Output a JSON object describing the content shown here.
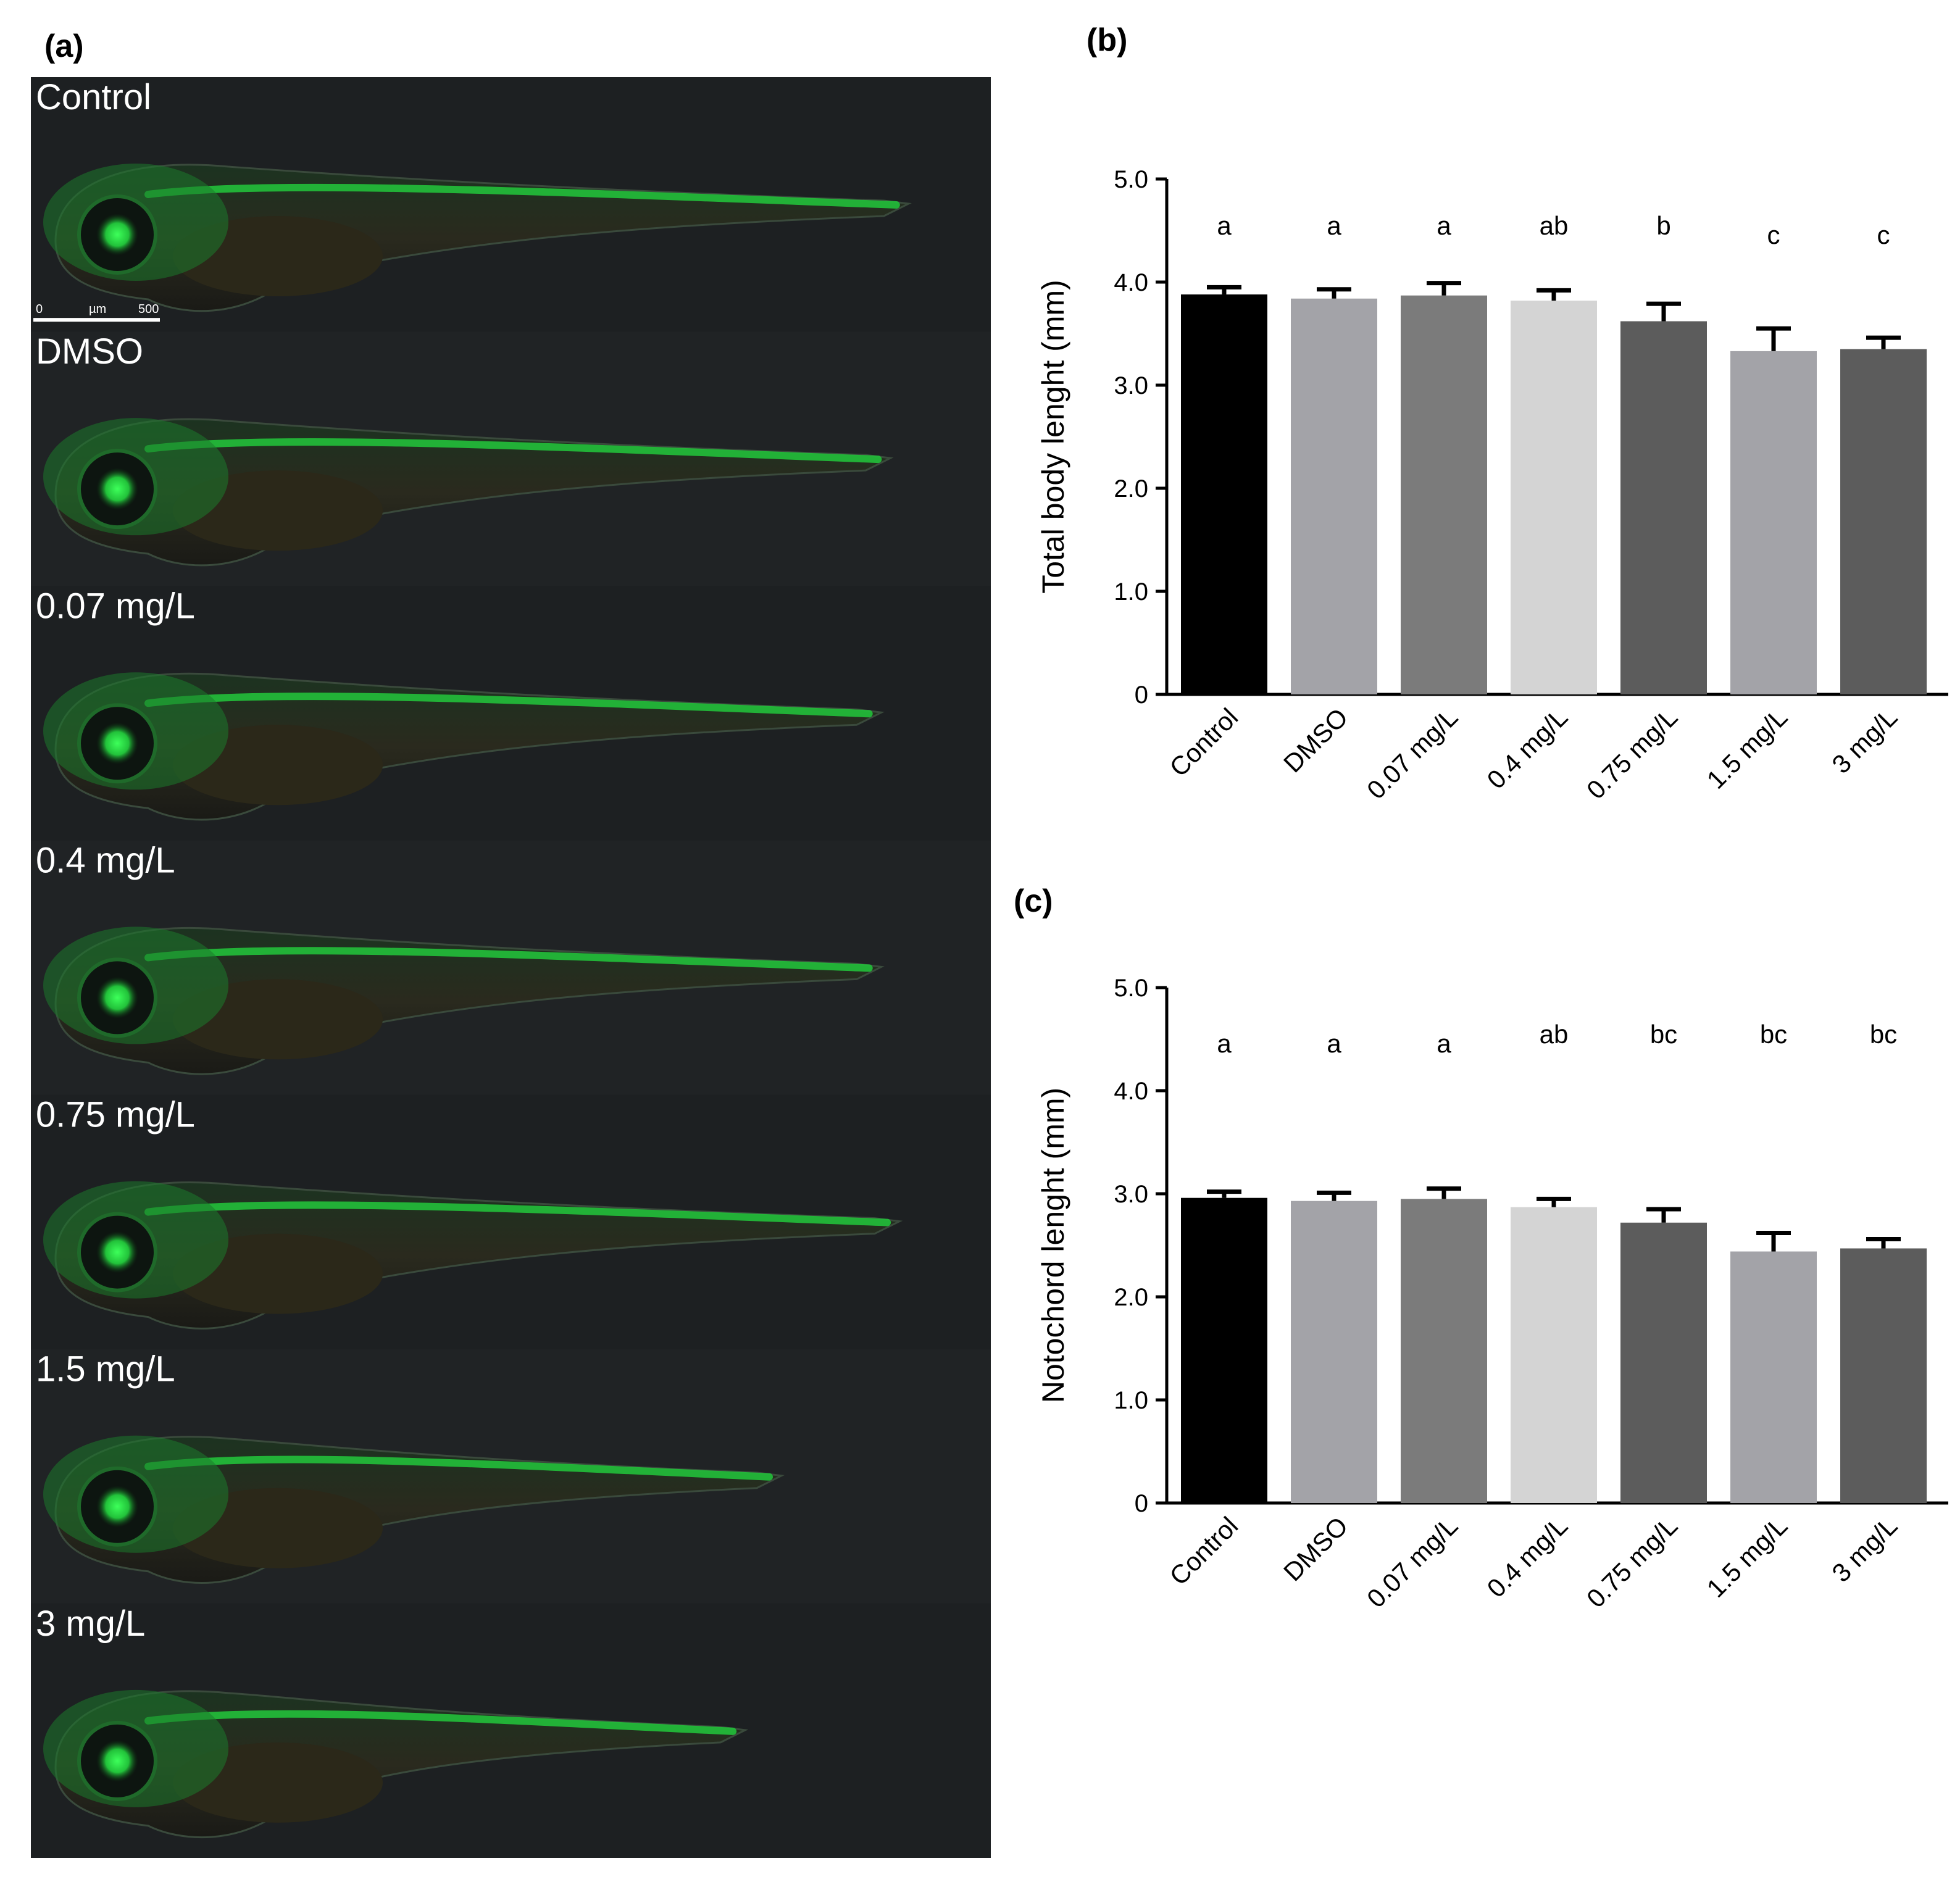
{
  "panel_letters": {
    "a": "(a)",
    "b": "(b)",
    "c": "(c)"
  },
  "images": {
    "scale_bar": {
      "ticks": [
        "0",
        "µm",
        "500"
      ]
    },
    "rows": [
      {
        "label": "Control",
        "length_fraction": 0.94
      },
      {
        "label": "DMSO",
        "length_fraction": 0.92
      },
      {
        "label": "0.07 mg/L",
        "length_fraction": 0.91
      },
      {
        "label": "0.4 mg/L",
        "length_fraction": 0.91
      },
      {
        "label": "0.75 mg/L",
        "length_fraction": 0.93
      },
      {
        "label": "1.5 mg/L",
        "length_fraction": 0.8
      },
      {
        "label": "3 mg/L",
        "length_fraction": 0.76
      }
    ]
  },
  "chart_data": [
    {
      "type": "bar",
      "ylabel": "Total body lenght (mm)",
      "ylim": [
        0,
        5.0
      ],
      "yticks": [
        "0",
        "1.0",
        "2.0",
        "3.0",
        "4.0",
        "5.0"
      ],
      "categories": [
        "Control",
        "DMSO",
        "0.07 mg/L",
        "0.4 mg/L",
        "0.75 mg/L",
        "1.5 mg/L",
        "3 mg/L"
      ],
      "values": [
        3.88,
        3.84,
        3.87,
        3.82,
        3.62,
        3.33,
        3.35
      ],
      "errors": [
        0.07,
        0.09,
        0.12,
        0.1,
        0.17,
        0.22,
        0.11
      ],
      "letters": [
        "a",
        "a",
        "a",
        "ab",
        "b",
        "c",
        "c"
      ],
      "colors": [
        "#000000",
        "#a3a3a8",
        "#7b7b7b",
        "#d4d4d4",
        "#5c5c5c",
        "#a3a3a8",
        "#5c5c5c"
      ]
    },
    {
      "type": "bar",
      "ylabel": "Notochord lenght (mm)",
      "ylim": [
        0,
        5.0
      ],
      "yticks": [
        "0",
        "1.0",
        "2.0",
        "3.0",
        "4.0",
        "5.0"
      ],
      "categories": [
        "Control",
        "DMSO",
        "0.07 mg/L",
        "0.4 mg/L",
        "0.75 mg/L",
        "1.5 mg/L",
        "3 mg/L"
      ],
      "values": [
        2.96,
        2.93,
        2.95,
        2.87,
        2.72,
        2.44,
        2.47
      ],
      "errors": [
        0.06,
        0.08,
        0.1,
        0.08,
        0.13,
        0.18,
        0.09
      ],
      "letters": [
        "a",
        "a",
        "a",
        "ab",
        "bc",
        "bc",
        "bc"
      ],
      "colors": [
        "#000000",
        "#a3a3a8",
        "#7b7b7b",
        "#d4d4d4",
        "#5c5c5c",
        "#a3a3a8",
        "#5c5c5c"
      ]
    }
  ]
}
